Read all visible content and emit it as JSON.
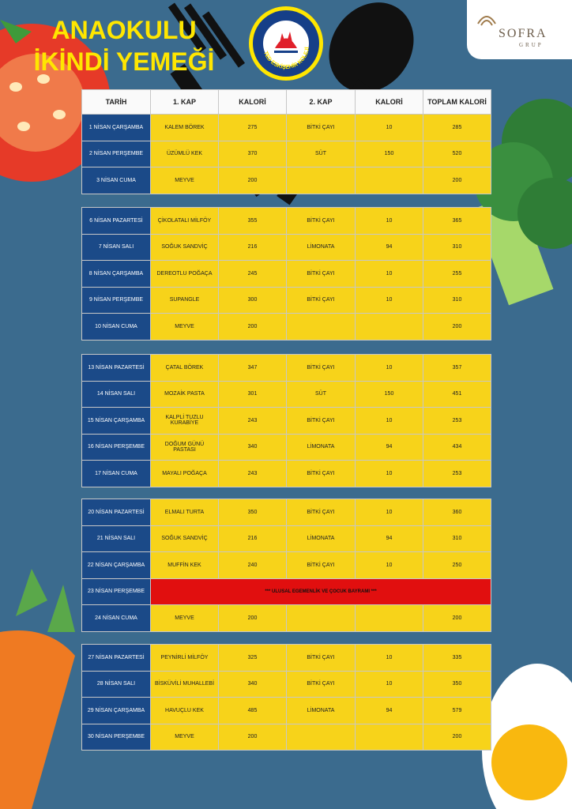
{
  "title": {
    "line1": "ANAOKULU",
    "line2": "İKİNDİ YEMEĞİ"
  },
  "logo_ted": {
    "text": "TED ESKİŞEHİR KOLEJİ"
  },
  "logo_sofra": {
    "name": "SOFRA",
    "sub": "GRUP"
  },
  "colors": {
    "background": "#3b6b8e",
    "title": "#ffe600",
    "cell": "#f7d31a",
    "day_cell": "#1b4a88",
    "holiday": "#e10f0f"
  },
  "headers": [
    "TARİH",
    "1. KAP",
    "KALORİ",
    "2. KAP",
    "KALORİ",
    "TOPLAM KALORİ"
  ],
  "weeks": [
    {
      "rows": [
        {
          "date": "1 NİSAN ÇARŞAMBA",
          "dish1": "KALEM BÖREK",
          "cal1": "275",
          "dish2": "BİTKİ ÇAYI",
          "cal2": "10",
          "total": "285"
        },
        {
          "date": "2 NİSAN PERŞEMBE",
          "dish1": "ÜZÜMLÜ KEK",
          "cal1": "370",
          "dish2": "SÜT",
          "cal2": "150",
          "total": "520"
        },
        {
          "date": "3 NİSAN CUMA",
          "dish1": "MEYVE",
          "cal1": "200",
          "dish2": "",
          "cal2": "",
          "total": "200"
        }
      ]
    },
    {
      "rows": [
        {
          "date": "6 NİSAN PAZARTESİ",
          "dish1": "ÇİKOLATALI MİLFÖY",
          "cal1": "355",
          "dish2": "BİTKİ ÇAYI",
          "cal2": "10",
          "total": "365"
        },
        {
          "date": "7 NİSAN SALI",
          "dish1": "SOĞUK SANDVİÇ",
          "cal1": "216",
          "dish2": "LİMONATA",
          "cal2": "94",
          "total": "310"
        },
        {
          "date": "8 NİSAN ÇARŞAMBA",
          "dish1": "DEREOTLU POĞAÇA",
          "cal1": "245",
          "dish2": "BİTKİ ÇAYI",
          "cal2": "10",
          "total": "255"
        },
        {
          "date": "9 NİSAN PERŞEMBE",
          "dish1": "SUPANGLE",
          "cal1": "300",
          "dish2": "BİTKİ ÇAYI",
          "cal2": "10",
          "total": "310"
        },
        {
          "date": "10 NİSAN CUMA",
          "dish1": "MEYVE",
          "cal1": "200",
          "dish2": "",
          "cal2": "",
          "total": "200"
        }
      ]
    },
    {
      "rows": [
        {
          "date": "13 NİSAN PAZARTESİ",
          "dish1": "ÇATAL BÖREK",
          "cal1": "347",
          "dish2": "BİTKİ ÇAYI",
          "cal2": "10",
          "total": "357"
        },
        {
          "date": "14 NİSAN SALI",
          "dish1": "MOZAİK PASTA",
          "cal1": "301",
          "dish2": "SÜT",
          "cal2": "150",
          "total": "451"
        },
        {
          "date": "15 NİSAN ÇARŞAMBA",
          "dish1": "KALPLİ TUZLU KURABİYE",
          "cal1": "243",
          "dish2": "BİTKİ ÇAYI",
          "cal2": "10",
          "total": "253"
        },
        {
          "date": "16 NİSAN PERŞEMBE",
          "dish1": "DOĞUM GÜNÜ PASTASI",
          "cal1": "340",
          "dish2": "LİMONATA",
          "cal2": "94",
          "total": "434"
        },
        {
          "date": "17 NİSAN CUMA",
          "dish1": "MAYALI POĞAÇA",
          "cal1": "243",
          "dish2": "BİTKİ ÇAYI",
          "cal2": "10",
          "total": "253"
        }
      ]
    },
    {
      "rows": [
        {
          "date": "20 NİSAN PAZARTESİ",
          "dish1": "ELMALI TURTA",
          "cal1": "350",
          "dish2": "BİTKİ ÇAYI",
          "cal2": "10",
          "total": "360"
        },
        {
          "date": "21 NİSAN SALI",
          "dish1": "SOĞUK SANDVİÇ",
          "cal1": "216",
          "dish2": "LİMONATA",
          "cal2": "94",
          "total": "310"
        },
        {
          "date": "22 NİSAN ÇARŞAMBA",
          "dish1": "MUFFİN KEK",
          "cal1": "240",
          "dish2": "BİTKİ ÇAYI",
          "cal2": "10",
          "total": "250"
        },
        {
          "date": "23 NİSAN PERŞEMBE",
          "holiday": "*** ULUSAL EGEMENLİK VE ÇOCUK BAYRAMI ***"
        },
        {
          "date": "24 NİSAN CUMA",
          "dish1": "MEYVE",
          "cal1": "200",
          "dish2": "",
          "cal2": "",
          "total": "200"
        }
      ]
    },
    {
      "rows": [
        {
          "date": "27 NİSAN PAZARTESİ",
          "dish1": "PEYNİRLİ MİLFÖY",
          "cal1": "325",
          "dish2": "BİTKİ ÇAYI",
          "cal2": "10",
          "total": "335"
        },
        {
          "date": "28 NİSAN SALI",
          "dish1": "BİSKÜVİLİ MUHALLEBİ",
          "cal1": "340",
          "dish2": "BİTKİ ÇAYI",
          "cal2": "10",
          "total": "350"
        },
        {
          "date": "29 NİSAN ÇARŞAMBA",
          "dish1": "HAVUÇLU KEK",
          "cal1": "485",
          "dish2": "LİMONATA",
          "cal2": "94",
          "total": "579"
        },
        {
          "date": "30 NİSAN PERŞEMBE",
          "dish1": "MEYVE",
          "cal1": "200",
          "dish2": "",
          "cal2": "",
          "total": "200"
        }
      ]
    }
  ]
}
